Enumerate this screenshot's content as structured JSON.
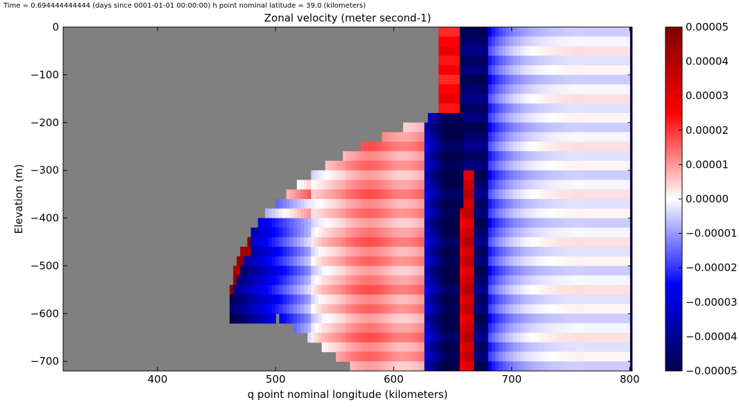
{
  "chart_data": {
    "type": "heatmap",
    "suptitle": "Time = 0.694444444444 (days since 0001-01-01 00:00:00)   h point nominal latitude = 39.0 (kilometers)",
    "title": "Zonal velocity (meter  second-1)",
    "xlabel": "q point nominal longitude (kilometers)",
    "ylabel": "Elevation (m)",
    "xlim": [
      320,
      802
    ],
    "ylim": [
      -720,
      0
    ],
    "xticks": [
      400,
      500,
      600,
      700,
      800
    ],
    "xtick_labels": [
      "400",
      "500",
      "600",
      "700",
      "800"
    ],
    "yticks": [
      0,
      -100,
      -200,
      -300,
      -400,
      -500,
      -600,
      -700
    ],
    "ytick_labels": [
      "0",
      "−100",
      "−200",
      "−300",
      "−400",
      "−500",
      "−600",
      "−700"
    ],
    "colormap": "seismic",
    "vmin": -5e-05,
    "vmax": 5e-05,
    "colorbar_ticks": [
      5e-05,
      4e-05,
      3e-05,
      2e-05,
      1e-05,
      0.0,
      -1e-05,
      -2e-05,
      -3e-05,
      -4e-05,
      -5e-05
    ],
    "colorbar_tick_labels": [
      "0.00005",
      "0.00004",
      "0.00003",
      "0.00002",
      "0.00001",
      "0.00000",
      "−0.00001",
      "−0.00002",
      "−0.00003",
      "−0.00004",
      "−0.00005"
    ],
    "land_color": "#808080",
    "grid": false
  }
}
